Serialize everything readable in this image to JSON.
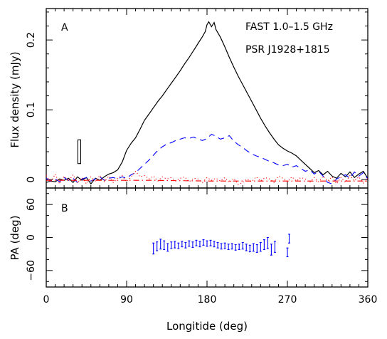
{
  "chart_data": [
    {
      "panel": "A",
      "type": "line",
      "ylabel": "Flux density (mJy)",
      "xlim": [
        0,
        360
      ],
      "ylim": [
        -0.012,
        0.245
      ],
      "yticks": [
        0,
        0.1,
        0.2
      ],
      "ytick_labels": [
        "0",
        "0.1",
        "0.2"
      ],
      "annotations": [
        "FAST 1.0–1.5 GHz",
        "PSR J1928+1815"
      ],
      "error_box": {
        "x": 37,
        "y_low": 0.023,
        "y_high": 0.057
      },
      "series": [
        {
          "style": "solid",
          "color": "#000000",
          "x": [
            0,
            5,
            10,
            15,
            20,
            25,
            30,
            35,
            40,
            45,
            50,
            55,
            60,
            65,
            70,
            75,
            80,
            85,
            90,
            95,
            100,
            105,
            110,
            115,
            120,
            125,
            130,
            135,
            140,
            145,
            150,
            155,
            160,
            165,
            170,
            175,
            178,
            180,
            182,
            185,
            188,
            190,
            195,
            200,
            205,
            210,
            215,
            220,
            225,
            230,
            235,
            240,
            245,
            250,
            255,
            260,
            265,
            270,
            275,
            280,
            285,
            290,
            295,
            300,
            305,
            310,
            315,
            320,
            325,
            330,
            335,
            340,
            345,
            350,
            355,
            360
          ],
          "y": [
            -0.004,
            -0.002,
            -0.003,
            0.001,
            -0.001,
            0.002,
            -0.004,
            0.004,
            -0.001,
            0.003,
            -0.006,
            0.002,
            -0.001,
            0.004,
            0.008,
            0.01,
            0.014,
            0.025,
            0.042,
            0.052,
            0.06,
            0.072,
            0.085,
            0.094,
            0.103,
            0.112,
            0.12,
            0.129,
            0.138,
            0.147,
            0.156,
            0.166,
            0.175,
            0.185,
            0.195,
            0.205,
            0.212,
            0.222,
            0.226,
            0.219,
            0.225,
            0.215,
            0.204,
            0.19,
            0.175,
            0.161,
            0.148,
            0.136,
            0.124,
            0.112,
            0.1,
            0.088,
            0.077,
            0.067,
            0.058,
            0.05,
            0.045,
            0.041,
            0.038,
            0.034,
            0.028,
            0.022,
            0.016,
            0.01,
            0.013,
            0.007,
            0.012,
            0.005,
            0.002,
            0.009,
            0.004,
            0.011,
            0.003,
            0.008,
            0.012,
            0.002
          ]
        },
        {
          "style": "dashed",
          "color": "#0000ff",
          "x": [
            0,
            5,
            10,
            15,
            20,
            25,
            30,
            35,
            40,
            45,
            50,
            55,
            60,
            65,
            70,
            75,
            80,
            85,
            90,
            95,
            100,
            105,
            110,
            115,
            120,
            125,
            130,
            135,
            140,
            145,
            150,
            155,
            160,
            165,
            170,
            175,
            180,
            185,
            190,
            195,
            200,
            205,
            210,
            215,
            220,
            225,
            230,
            235,
            240,
            245,
            250,
            255,
            260,
            265,
            270,
            275,
            280,
            285,
            290,
            295,
            300,
            305,
            310,
            315,
            320,
            325,
            330,
            335,
            340,
            345,
            350,
            355,
            360
          ],
          "y": [
            0.002,
            -0.002,
            0.001,
            -0.003,
            0.003,
            -0.001,
            0.002,
            -0.004,
            0.001,
            0.003,
            -0.002,
            0.001,
            0.004,
            -0.001,
            0.002,
            0.003,
            0.001,
            0.004,
            0.002,
            0.007,
            0.01,
            0.016,
            0.022,
            0.028,
            0.035,
            0.042,
            0.047,
            0.051,
            0.053,
            0.056,
            0.058,
            0.06,
            0.059,
            0.061,
            0.058,
            0.056,
            0.059,
            0.065,
            0.062,
            0.058,
            0.06,
            0.063,
            0.055,
            0.05,
            0.046,
            0.041,
            0.037,
            0.034,
            0.032,
            0.029,
            0.026,
            0.024,
            0.021,
            0.02,
            0.022,
            0.018,
            0.02,
            0.016,
            0.012,
            0.014,
            0.008,
            0.012,
            0.005,
            -0.004,
            -0.006,
            0.001,
            0.004,
            0.007,
            0.002,
            0.011,
            0.005,
            0.01,
            0.001
          ]
        },
        {
          "style": "dotted",
          "color": "#ff0000",
          "x": [
            0,
            5,
            10,
            15,
            20,
            25,
            30,
            35,
            40,
            45,
            50,
            55,
            60,
            65,
            70,
            75,
            80,
            85,
            90,
            95,
            100,
            105,
            110,
            115,
            120,
            125,
            130,
            135,
            140,
            145,
            150,
            155,
            160,
            165,
            170,
            175,
            180,
            185,
            190,
            195,
            200,
            205,
            210,
            215,
            220,
            225,
            230,
            235,
            240,
            245,
            250,
            255,
            260,
            265,
            270,
            275,
            280,
            285,
            290,
            295,
            300,
            305,
            310,
            315,
            320,
            325,
            330,
            335,
            340,
            345,
            350,
            355,
            360
          ],
          "y": [
            0.006,
            -0.004,
            0.008,
            -0.006,
            0.005,
            -0.002,
            0.007,
            -0.005,
            0.003,
            -0.006,
            0.004,
            -0.002,
            0.006,
            -0.003,
            0.005,
            -0.004,
            0.002,
            0.006,
            -0.003,
            0.004,
            0.012,
            0.004,
            0.006,
            0.001,
            0.005,
            -0.002,
            0.004,
            0.001,
            0.003,
            -0.002,
            0.002,
            0.004,
            -0.003,
            0.002,
            0.001,
            -0.004,
            0.003,
            -0.001,
            0.002,
            -0.002,
            0.003,
            -0.004,
            0.002,
            -0.007,
            -0.004,
            0.001,
            -0.003,
            0.004,
            -0.002,
            0.003,
            0.001,
            -0.004,
            0.005,
            0.002,
            -0.003,
            0.004,
            -0.002,
            0.003,
            0.001,
            -0.004,
            0.003,
            -0.003,
            0.005,
            -0.002,
            0.004,
            -0.006,
            0.003,
            -0.004,
            0.006,
            -0.002,
            0.004,
            -0.005,
            0.002
          ]
        },
        {
          "style": "dashdot",
          "color": "#ff0000",
          "x": [
            0,
            60,
            120,
            180,
            240,
            300,
            360
          ],
          "y": [
            -0.001,
            -0.001,
            -0.001,
            -0.002,
            -0.002,
            -0.002,
            -0.002
          ]
        }
      ]
    },
    {
      "panel": "B",
      "type": "scatter",
      "xlabel": "Longitide (deg)",
      "ylabel": "PA (deg)",
      "xlim": [
        0,
        360
      ],
      "ylim": [
        -90,
        90
      ],
      "xticks": [
        0,
        90,
        180,
        270,
        360
      ],
      "xtick_labels": [
        "0",
        "90",
        "180",
        "270",
        "360"
      ],
      "yticks": [
        -60,
        0,
        60
      ],
      "ytick_labels": [
        "−60",
        "0",
        "60"
      ],
      "color": "#0000ff",
      "points": [
        {
          "x": 120,
          "y": -20,
          "err": 10
        },
        {
          "x": 124,
          "y": -16,
          "err": 8
        },
        {
          "x": 128,
          "y": -12,
          "err": 9
        },
        {
          "x": 132,
          "y": -14,
          "err": 8
        },
        {
          "x": 136,
          "y": -18,
          "err": 7
        },
        {
          "x": 140,
          "y": -14,
          "err": 6
        },
        {
          "x": 144,
          "y": -13,
          "err": 6
        },
        {
          "x": 148,
          "y": -15,
          "err": 5
        },
        {
          "x": 152,
          "y": -12,
          "err": 5
        },
        {
          "x": 156,
          "y": -14,
          "err": 5
        },
        {
          "x": 160,
          "y": -11,
          "err": 5
        },
        {
          "x": 164,
          "y": -13,
          "err": 5
        },
        {
          "x": 168,
          "y": -10,
          "err": 5
        },
        {
          "x": 172,
          "y": -12,
          "err": 5
        },
        {
          "x": 176,
          "y": -9,
          "err": 5
        },
        {
          "x": 180,
          "y": -11,
          "err": 5
        },
        {
          "x": 184,
          "y": -10,
          "err": 5
        },
        {
          "x": 188,
          "y": -12,
          "err": 5
        },
        {
          "x": 192,
          "y": -14,
          "err": 5
        },
        {
          "x": 196,
          "y": -16,
          "err": 5
        },
        {
          "x": 200,
          "y": -15,
          "err": 5
        },
        {
          "x": 204,
          "y": -17,
          "err": 5
        },
        {
          "x": 208,
          "y": -16,
          "err": 5
        },
        {
          "x": 212,
          "y": -18,
          "err": 5
        },
        {
          "x": 216,
          "y": -17,
          "err": 5
        },
        {
          "x": 220,
          "y": -15,
          "err": 6
        },
        {
          "x": 224,
          "y": -18,
          "err": 6
        },
        {
          "x": 228,
          "y": -20,
          "err": 6
        },
        {
          "x": 232,
          "y": -18,
          "err": 7
        },
        {
          "x": 236,
          "y": -20,
          "err": 7
        },
        {
          "x": 240,
          "y": -17,
          "err": 8
        },
        {
          "x": 244,
          "y": -13,
          "err": 9
        },
        {
          "x": 248,
          "y": -10,
          "err": 10
        },
        {
          "x": 252,
          "y": -22,
          "err": 10
        },
        {
          "x": 256,
          "y": -17,
          "err": 10
        },
        {
          "x": 270,
          "y": -27,
          "err": 8
        },
        {
          "x": 272,
          "y": -2,
          "err": 8
        }
      ]
    }
  ]
}
